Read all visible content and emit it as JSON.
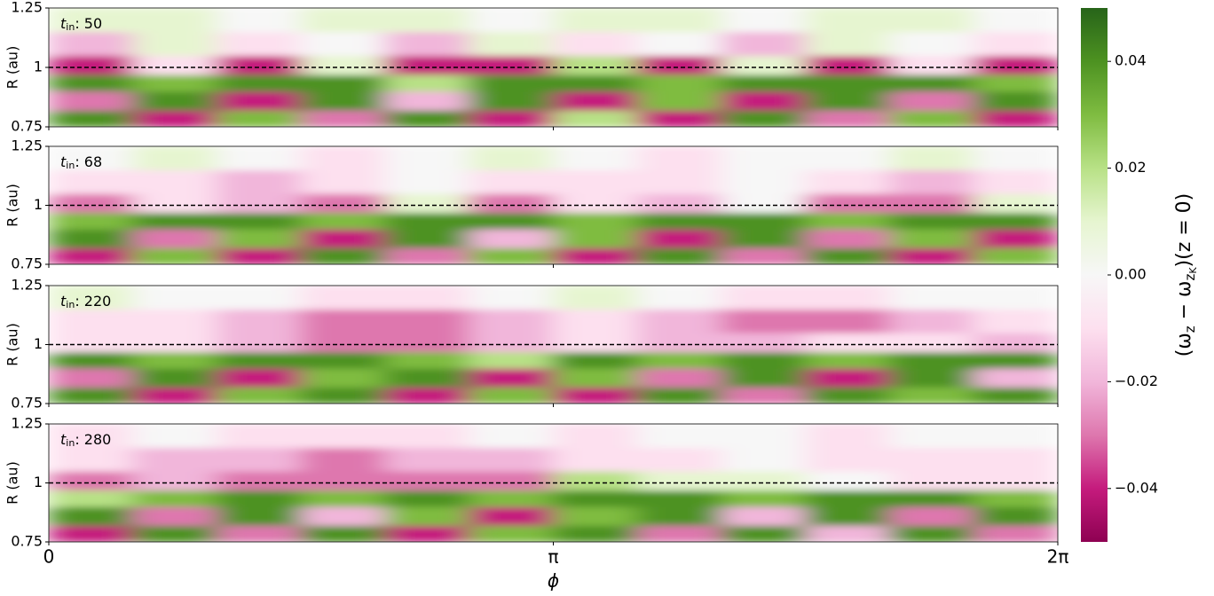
{
  "chart_data": [
    {
      "type": "heatmap",
      "annotation": {
        "symbol": "t",
        "subscript": "in",
        "text": ": 50"
      },
      "ylabel": "R (au)",
      "xlim": [
        0,
        6.283185
      ],
      "ylim": [
        0.75,
        1.25
      ],
      "xticks": [
        0,
        {
          "value": 3.141593,
          "label": "π"
        },
        {
          "value": 6.283185,
          "label": "2π"
        }
      ],
      "yticks": [
        0.75,
        1,
        1.25
      ],
      "hline": 1,
      "ybins": [
        0.75,
        0.82,
        0.9,
        0.97,
        1.05,
        1.15,
        1.25
      ],
      "z": [
        [
          0.04,
          -0.04,
          0.03,
          -0.03,
          0.04,
          -0.04,
          0.02,
          -0.04,
          0.04,
          -0.03,
          0.03,
          -0.04
        ],
        [
          -0.03,
          0.04,
          -0.04,
          0.04,
          -0.02,
          0.04,
          -0.04,
          0.03,
          -0.04,
          0.04,
          -0.03,
          0.04
        ],
        [
          0.04,
          0.03,
          0.04,
          0.04,
          0.02,
          0.04,
          0.04,
          0.03,
          0.04,
          0.04,
          0.04,
          0.03
        ],
        [
          -0.04,
          -0.01,
          -0.04,
          0.01,
          -0.04,
          -0.04,
          0.02,
          -0.04,
          0.01,
          -0.04,
          -0.01,
          -0.04
        ],
        [
          -0.02,
          0.01,
          -0.01,
          0.0,
          -0.02,
          0.01,
          -0.01,
          0.0,
          -0.02,
          0.01,
          0.0,
          -0.01
        ],
        [
          0.01,
          0.01,
          0.0,
          0.01,
          0.01,
          0.0,
          0.01,
          0.01,
          0.0,
          0.01,
          0.01,
          0.0
        ]
      ]
    },
    {
      "type": "heatmap",
      "annotation": {
        "symbol": "t",
        "subscript": "in",
        "text": ": 68"
      },
      "ylabel": "R (au)",
      "xlim": [
        0,
        6.283185
      ],
      "ylim": [
        0.75,
        1.25
      ],
      "xticks": [
        0,
        {
          "value": 3.141593,
          "label": "π"
        },
        {
          "value": 6.283185,
          "label": "2π"
        }
      ],
      "yticks": [
        0.75,
        1,
        1.25
      ],
      "hline": 1,
      "ybins": [
        0.75,
        0.82,
        0.9,
        0.97,
        1.05,
        1.15,
        1.25
      ],
      "z": [
        [
          -0.04,
          0.03,
          -0.04,
          0.04,
          -0.03,
          0.03,
          -0.04,
          0.04,
          -0.03,
          0.04,
          -0.04,
          0.03
        ],
        [
          0.04,
          -0.03,
          0.03,
          -0.04,
          0.04,
          -0.02,
          0.03,
          -0.04,
          0.04,
          -0.03,
          0.03,
          -0.04
        ],
        [
          0.03,
          0.04,
          0.04,
          0.03,
          0.04,
          0.04,
          0.03,
          0.04,
          0.04,
          0.03,
          0.04,
          0.04
        ],
        [
          -0.03,
          -0.01,
          -0.02,
          -0.03,
          0.01,
          -0.03,
          -0.01,
          -0.02,
          0.0,
          -0.03,
          -0.03,
          0.01
        ],
        [
          -0.01,
          -0.01,
          -0.02,
          -0.01,
          0.0,
          -0.01,
          -0.01,
          -0.01,
          0.0,
          -0.01,
          -0.02,
          -0.01
        ],
        [
          0.0,
          0.01,
          0.0,
          -0.01,
          0.0,
          0.01,
          0.0,
          -0.01,
          0.0,
          0.0,
          0.01,
          0.0
        ]
      ]
    },
    {
      "type": "heatmap",
      "annotation": {
        "symbol": "t",
        "subscript": "in",
        "text": ": 220"
      },
      "ylabel": "R (au)",
      "xlim": [
        0,
        6.283185
      ],
      "ylim": [
        0.75,
        1.25
      ],
      "xticks": [
        0,
        {
          "value": 3.141593,
          "label": "π"
        },
        {
          "value": 6.283185,
          "label": "2π"
        }
      ],
      "yticks": [
        0.75,
        1,
        1.25
      ],
      "hline": 1,
      "ybins": [
        0.75,
        0.82,
        0.9,
        0.97,
        1.05,
        1.15,
        1.25
      ],
      "z": [
        [
          0.04,
          -0.04,
          0.03,
          0.04,
          -0.04,
          0.03,
          -0.04,
          0.04,
          -0.03,
          0.04,
          0.03,
          0.04
        ],
        [
          -0.03,
          0.04,
          -0.04,
          0.03,
          0.04,
          -0.04,
          0.03,
          -0.03,
          0.04,
          -0.04,
          0.04,
          -0.02
        ],
        [
          0.04,
          0.03,
          0.04,
          0.04,
          0.03,
          0.02,
          0.04,
          0.03,
          0.04,
          0.03,
          0.04,
          0.04
        ],
        [
          -0.01,
          -0.01,
          -0.02,
          -0.03,
          -0.03,
          -0.02,
          -0.01,
          -0.02,
          -0.02,
          -0.01,
          -0.01,
          -0.02
        ],
        [
          -0.01,
          -0.01,
          -0.02,
          -0.03,
          -0.03,
          -0.02,
          -0.01,
          -0.02,
          -0.03,
          -0.03,
          -0.02,
          -0.01
        ],
        [
          0.01,
          0.0,
          0.0,
          -0.01,
          -0.01,
          0.0,
          0.01,
          0.0,
          -0.01,
          -0.01,
          0.0,
          0.0
        ]
      ]
    },
    {
      "type": "heatmap",
      "annotation": {
        "symbol": "t",
        "subscript": "in",
        "text": ": 280"
      },
      "ylabel": "R (au)",
      "xlabel": "ϕ",
      "xlim": [
        0,
        6.283185
      ],
      "ylim": [
        0.75,
        1.25
      ],
      "xticks": [
        0,
        {
          "value": 3.141593,
          "label": "π"
        },
        {
          "value": 6.283185,
          "label": "2π"
        }
      ],
      "yticks": [
        0.75,
        1,
        1.25
      ],
      "hline": 1,
      "ybins": [
        0.75,
        0.82,
        0.9,
        0.97,
        1.05,
        1.15,
        1.25
      ],
      "z": [
        [
          -0.04,
          0.04,
          -0.03,
          0.04,
          -0.04,
          0.03,
          0.04,
          -0.03,
          0.04,
          -0.02,
          0.04,
          -0.03
        ],
        [
          0.04,
          -0.03,
          0.04,
          -0.02,
          0.03,
          -0.04,
          0.03,
          0.04,
          -0.02,
          0.04,
          -0.03,
          0.04
        ],
        [
          0.02,
          0.03,
          0.04,
          0.03,
          0.04,
          0.03,
          0.04,
          0.04,
          0.03,
          0.04,
          0.04,
          0.03
        ],
        [
          -0.03,
          -0.02,
          -0.03,
          -0.03,
          -0.03,
          -0.03,
          0.02,
          0.01,
          0.01,
          0.0,
          -0.01,
          -0.01
        ],
        [
          -0.01,
          -0.02,
          -0.02,
          -0.03,
          -0.02,
          -0.02,
          -0.01,
          -0.01,
          0.0,
          -0.01,
          -0.01,
          -0.01
        ],
        [
          -0.01,
          0.0,
          -0.01,
          -0.01,
          -0.01,
          0.0,
          -0.01,
          0.0,
          0.0,
          -0.01,
          0.0,
          0.0
        ]
      ]
    }
  ],
  "colorbar": {
    "label": [
      "(ω",
      "z",
      " − ω",
      "z",
      "K",
      ")(z = 0)"
    ],
    "zlim": [
      -0.05,
      0.05
    ],
    "ticks": [
      {
        "value": -0.04,
        "label": "−0.04"
      },
      {
        "value": -0.02,
        "label": "−0.02"
      },
      {
        "value": 0,
        "label": "0.00"
      },
      0.02,
      0.04
    ],
    "colormap": [
      "#8e0152",
      "#c51b7d",
      "#de77ae",
      "#f1b6da",
      "#fde0ef",
      "#f7f7f7",
      "#e6f5d0",
      "#b8e186",
      "#7fbc41",
      "#4d9221",
      "#276419"
    ]
  }
}
